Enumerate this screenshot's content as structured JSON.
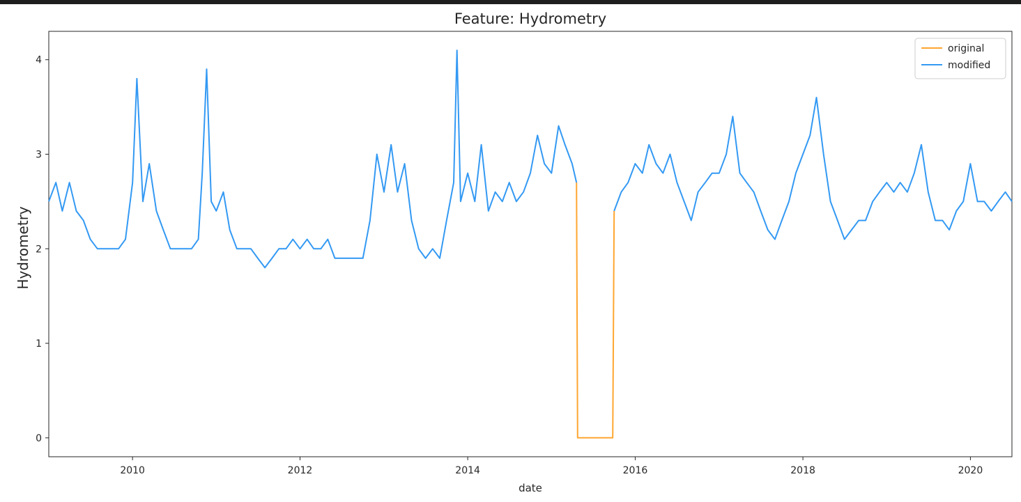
{
  "chart_data": {
    "type": "line",
    "title": "Feature: Hydrometry",
    "xlabel": "date",
    "ylabel": "Hydrometry",
    "xlim": [
      "2009-01-01",
      "2020-06-30"
    ],
    "ylim": [
      -0.2,
      4.3
    ],
    "x_ticks": [
      "2010",
      "2012",
      "2014",
      "2016",
      "2018",
      "2020"
    ],
    "y_ticks": [
      "0",
      "1",
      "2",
      "3",
      "4"
    ],
    "legend_position": "top-right",
    "grid": false,
    "series": [
      {
        "name": "original",
        "color": "#ffa630",
        "x": [
          "2015-04-20",
          "2015-04-25",
          "2015-09-25",
          "2015-10-01"
        ],
        "y": [
          2.7,
          0.0,
          0.0,
          2.4
        ]
      },
      {
        "name": "modified",
        "color": "#3399f3",
        "x": [
          "2009-01-01",
          "2009-02-01",
          "2009-03-01",
          "2009-04-01",
          "2009-05-01",
          "2009-06-01",
          "2009-07-01",
          "2009-08-01",
          "2009-09-01",
          "2009-10-01",
          "2009-11-01",
          "2009-12-01",
          "2010-01-01",
          "2010-01-20",
          "2010-02-15",
          "2010-03-15",
          "2010-04-15",
          "2010-05-15",
          "2010-06-15",
          "2010-07-15",
          "2010-08-15",
          "2010-09-15",
          "2010-10-15",
          "2010-11-01",
          "2010-11-20",
          "2010-12-10",
          "2011-01-01",
          "2011-02-01",
          "2011-03-01",
          "2011-04-01",
          "2011-05-01",
          "2011-06-01",
          "2011-07-01",
          "2011-08-01",
          "2011-09-01",
          "2011-10-01",
          "2011-11-01",
          "2011-12-01",
          "2012-01-01",
          "2012-02-01",
          "2012-03-01",
          "2012-04-01",
          "2012-05-01",
          "2012-06-01",
          "2012-07-01",
          "2012-08-01",
          "2012-09-01",
          "2012-10-01",
          "2012-11-01",
          "2012-12-01",
          "2013-01-01",
          "2013-02-01",
          "2013-03-01",
          "2013-04-01",
          "2013-05-01",
          "2013-06-01",
          "2013-07-01",
          "2013-08-01",
          "2013-09-01",
          "2013-10-01",
          "2013-11-01",
          "2013-11-15",
          "2013-12-01",
          "2014-01-01",
          "2014-02-01",
          "2014-03-01",
          "2014-04-01",
          "2014-05-01",
          "2014-06-01",
          "2014-07-01",
          "2014-08-01",
          "2014-09-01",
          "2014-10-01",
          "2014-11-01",
          "2014-12-01",
          "2015-01-01",
          "2015-02-01",
          "2015-03-01",
          "2015-04-01",
          "2015-04-20"
        ],
        "y": [
          2.5,
          2.7,
          2.4,
          2.7,
          2.4,
          2.3,
          2.1,
          2.0,
          2.0,
          2.0,
          2.0,
          2.1,
          2.7,
          3.8,
          2.5,
          2.9,
          2.4,
          2.2,
          2.0,
          2.0,
          2.0,
          2.0,
          2.1,
          2.8,
          3.9,
          2.5,
          2.4,
          2.6,
          2.2,
          2.0,
          2.0,
          2.0,
          1.9,
          1.8,
          1.9,
          2.0,
          2.0,
          2.1,
          2.0,
          2.1,
          2.0,
          2.0,
          2.1,
          1.9,
          1.9,
          1.9,
          1.9,
          1.9,
          2.3,
          3.0,
          2.6,
          3.1,
          2.6,
          2.9,
          2.3,
          2.0,
          1.9,
          2.0,
          1.9,
          2.3,
          2.7,
          4.1,
          2.5,
          2.8,
          2.5,
          3.1,
          2.4,
          2.6,
          2.5,
          2.7,
          2.5,
          2.6,
          2.8,
          3.2,
          2.9,
          2.8,
          3.3,
          3.1,
          2.9,
          2.7
        ],
        "x2": [
          "2015-10-01",
          "2015-11-01",
          "2015-12-01",
          "2016-01-01",
          "2016-02-01",
          "2016-03-01",
          "2016-04-01",
          "2016-05-01",
          "2016-06-01",
          "2016-07-01",
          "2016-08-01",
          "2016-09-01",
          "2016-10-01",
          "2016-11-01",
          "2016-12-01",
          "2017-01-01",
          "2017-02-01",
          "2017-03-01",
          "2017-04-01",
          "2017-05-01",
          "2017-06-01",
          "2017-07-01",
          "2017-08-01",
          "2017-09-01",
          "2017-10-01",
          "2017-11-01",
          "2017-12-01",
          "2018-01-01",
          "2018-02-01",
          "2018-03-01",
          "2018-04-01",
          "2018-05-01",
          "2018-06-01",
          "2018-07-01",
          "2018-08-01",
          "2018-09-01",
          "2018-10-01",
          "2018-11-01",
          "2018-12-01",
          "2019-01-01",
          "2019-02-01",
          "2019-03-01",
          "2019-04-01",
          "2019-05-01",
          "2019-06-01",
          "2019-07-01",
          "2019-08-01",
          "2019-09-01",
          "2019-10-01",
          "2019-11-01",
          "2019-12-01",
          "2020-01-01",
          "2020-02-01",
          "2020-03-01",
          "2020-04-01",
          "2020-05-01",
          "2020-06-01",
          "2020-06-30"
        ],
        "y2": [
          2.4,
          2.6,
          2.7,
          2.9,
          2.8,
          3.1,
          2.9,
          2.8,
          3.0,
          2.7,
          2.5,
          2.3,
          2.6,
          2.7,
          2.8,
          2.8,
          3.0,
          3.4,
          2.8,
          2.7,
          2.6,
          2.4,
          2.2,
          2.1,
          2.3,
          2.5,
          2.8,
          3.0,
          3.2,
          3.6,
          3.0,
          2.5,
          2.3,
          2.1,
          2.2,
          2.3,
          2.3,
          2.5,
          2.6,
          2.7,
          2.6,
          2.7,
          2.6,
          2.8,
          3.1,
          2.6,
          2.3,
          2.3,
          2.2,
          2.4,
          2.5,
          2.9,
          2.5,
          2.5,
          2.4,
          2.5,
          2.6,
          2.5
        ]
      }
    ]
  }
}
